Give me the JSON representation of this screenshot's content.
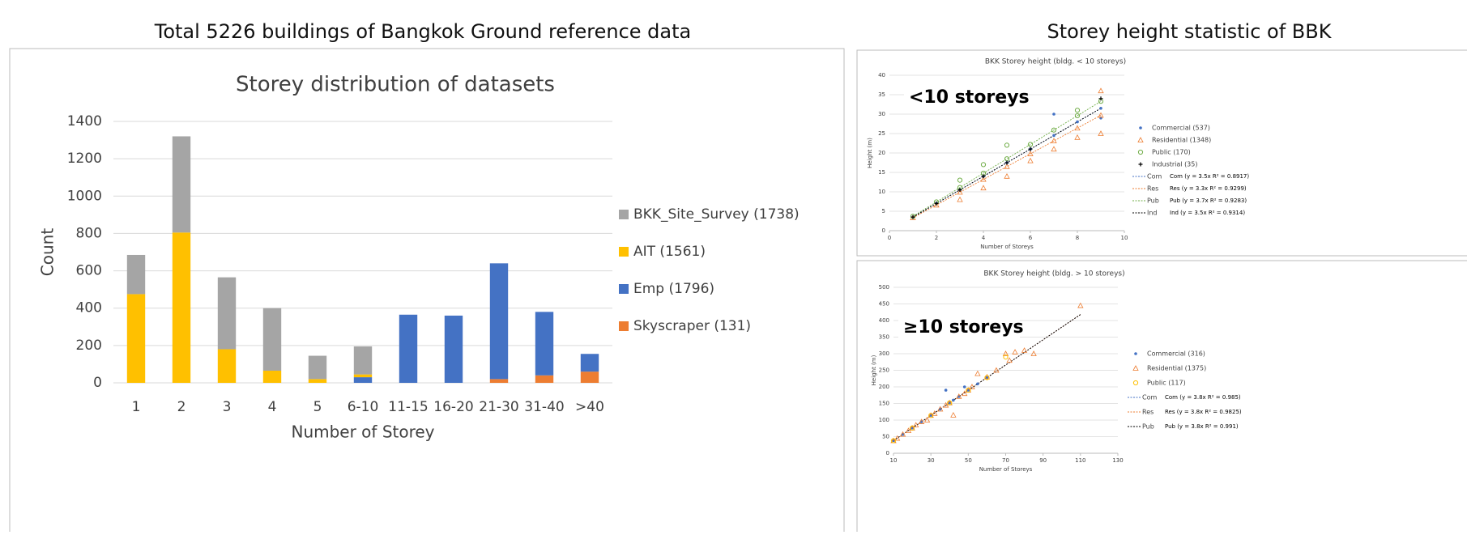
{
  "titles": [
    "Total 5226 buildings of Bangkok Ground reference data",
    "Storey height statistic of BBK"
  ],
  "chart_data": [
    {
      "type": "bar",
      "title": "Storey distribution of datasets",
      "x_label": "Number of Storey",
      "y_label": "Count",
      "categories": [
        "1",
        "2",
        "3",
        "4",
        "5",
        "6-10",
        "11-15",
        "16-20",
        "21-30",
        "31-40",
        ">40"
      ],
      "series": [
        {
          "name": "BKK_Site_Survey (1738)",
          "color": "#a5a5a5",
          "values": [
            210,
            515,
            385,
            335,
            125,
            150,
            0,
            0,
            0,
            0,
            0
          ]
        },
        {
          "name": "AIT (1561)",
          "color": "#ffc000",
          "values": [
            475,
            805,
            180,
            65,
            20,
            15,
            0,
            0,
            0,
            0,
            0
          ]
        },
        {
          "name": "Emp (1796)",
          "color": "#4472c4",
          "values": [
            0,
            0,
            0,
            0,
            0,
            30,
            365,
            360,
            620,
            340,
            95
          ]
        },
        {
          "name": "Skyscraper (131)",
          "color": "#ed7d31",
          "values": [
            0,
            0,
            0,
            0,
            0,
            0,
            0,
            0,
            20,
            40,
            60
          ]
        }
      ],
      "ylim": [
        0,
        1400
      ],
      "yticks": [
        0,
        200,
        400,
        600,
        800,
        1000,
        1200,
        1400
      ],
      "grid": true,
      "legend": "right"
    },
    {
      "type": "scatter",
      "title": "BKK Storey height (bldg. < 10 storeys)",
      "annotation": "<10 storeys",
      "x_label": "Number of Storeys",
      "y_label": "Height (m)",
      "xlim": [
        0,
        10
      ],
      "xticks": [
        0,
        2,
        4,
        6,
        8,
        10
      ],
      "ylim": [
        0,
        40
      ],
      "yticks": [
        0,
        5,
        10,
        15,
        20,
        25,
        30,
        35,
        40
      ],
      "grid": true,
      "legend": "right",
      "series": [
        {
          "name": "Commercial (537)",
          "color": "#4472c4",
          "marker": "dot",
          "x": [
            1,
            2,
            3,
            4,
            5,
            6,
            7,
            7,
            8,
            9,
            9
          ],
          "values": [
            3.5,
            7,
            10.5,
            14,
            17.5,
            21,
            24.5,
            30,
            28,
            31.5,
            29
          ]
        },
        {
          "name": "Residential (1348)",
          "color": "#ed7d31",
          "marker": "triangle",
          "x": [
            1,
            2,
            3,
            3,
            4,
            4,
            5,
            5,
            6,
            6,
            7,
            7,
            8,
            8,
            9,
            9,
            9
          ],
          "values": [
            3.3,
            6.6,
            9.9,
            8,
            13.2,
            11,
            16.5,
            14,
            19.8,
            18,
            23.1,
            21,
            26.4,
            24,
            29.7,
            25,
            36
          ]
        },
        {
          "name": "Public (170)",
          "color": "#70ad47",
          "marker": "circle",
          "x": [
            1,
            2,
            3,
            3,
            4,
            4,
            5,
            5,
            6,
            7,
            8,
            8,
            9
          ],
          "values": [
            3.7,
            7.4,
            11.1,
            13,
            14.8,
            17,
            18.5,
            22,
            22.2,
            25.9,
            29.6,
            31,
            33.3
          ]
        },
        {
          "name": "Industrial (35)",
          "color": "#000000",
          "marker": "plus",
          "x": [
            1,
            2,
            3,
            4,
            5,
            6,
            9
          ],
          "values": [
            3.5,
            7,
            10.5,
            14,
            17.5,
            21,
            34
          ]
        }
      ],
      "trendlines": [
        {
          "name": "Com",
          "label": "Com (y = 3.5x  R² = 0.8917)",
          "slope": 3.5,
          "color": "#4472c4"
        },
        {
          "name": "Res",
          "label": "Res (y = 3.3x  R² = 0.9299)",
          "slope": 3.3,
          "color": "#ed7d31"
        },
        {
          "name": "Pub",
          "label": "Pub (y = 3.7x  R² = 0.9283)",
          "slope": 3.7,
          "color": "#70ad47"
        },
        {
          "name": "Ind",
          "label": "Ind (y = 3.5x  R² = 0.9314)",
          "slope": 3.5,
          "color": "#000000"
        }
      ]
    },
    {
      "type": "scatter",
      "title": "BKK Storey height (bldg. > 10 storeys)",
      "annotation": "≥10 storeys",
      "x_label": "Number of Storeys",
      "y_label": "Height (m)",
      "xlim": [
        10,
        130
      ],
      "xticks": [
        10,
        30,
        50,
        70,
        90,
        110,
        130
      ],
      "ylim": [
        0,
        500
      ],
      "yticks": [
        0,
        50,
        100,
        150,
        200,
        250,
        300,
        350,
        400,
        450,
        500
      ],
      "grid": true,
      "legend": "right",
      "series": [
        {
          "name": "Commercial (316)",
          "color": "#4472c4",
          "marker": "dot",
          "x": [
            10,
            15,
            20,
            25,
            30,
            35,
            38,
            40,
            42,
            45,
            48,
            50,
            55,
            60
          ],
          "values": [
            38,
            57,
            76,
            95,
            114,
            133,
            190,
            152,
            160,
            171,
            200,
            190,
            209,
            228
          ]
        },
        {
          "name": "Residential (1375)",
          "color": "#ed7d31",
          "marker": "triangle",
          "x": [
            10,
            12,
            15,
            18,
            20,
            22,
            25,
            28,
            30,
            32,
            35,
            38,
            40,
            42,
            45,
            48,
            50,
            52,
            55,
            60,
            65,
            70,
            72,
            75,
            80,
            85,
            110
          ],
          "values": [
            38,
            45,
            57,
            68,
            76,
            85,
            95,
            100,
            114,
            120,
            133,
            145,
            152,
            115,
            171,
            180,
            190,
            200,
            240,
            230,
            250,
            300,
            280,
            305,
            310,
            300,
            445
          ]
        },
        {
          "name": "Public (117)",
          "color": "#ffc000",
          "marker": "circle",
          "x": [
            10,
            20,
            30,
            40,
            50,
            60,
            70
          ],
          "values": [
            38,
            76,
            114,
            152,
            190,
            228,
            290
          ]
        }
      ],
      "trendlines": [
        {
          "name": "Com",
          "label": "Com (y = 3.8x  R² = 0.985)",
          "slope": 3.8,
          "color": "#4472c4"
        },
        {
          "name": "Res",
          "label": "Res (y = 3.8x  R² = 0.9825)",
          "slope": 3.8,
          "color": "#ed7d31"
        },
        {
          "name": "Pub",
          "label": "Pub (y = 3.8x  R² = 0.991)",
          "slope": 3.8,
          "color": "#000000"
        }
      ]
    }
  ]
}
